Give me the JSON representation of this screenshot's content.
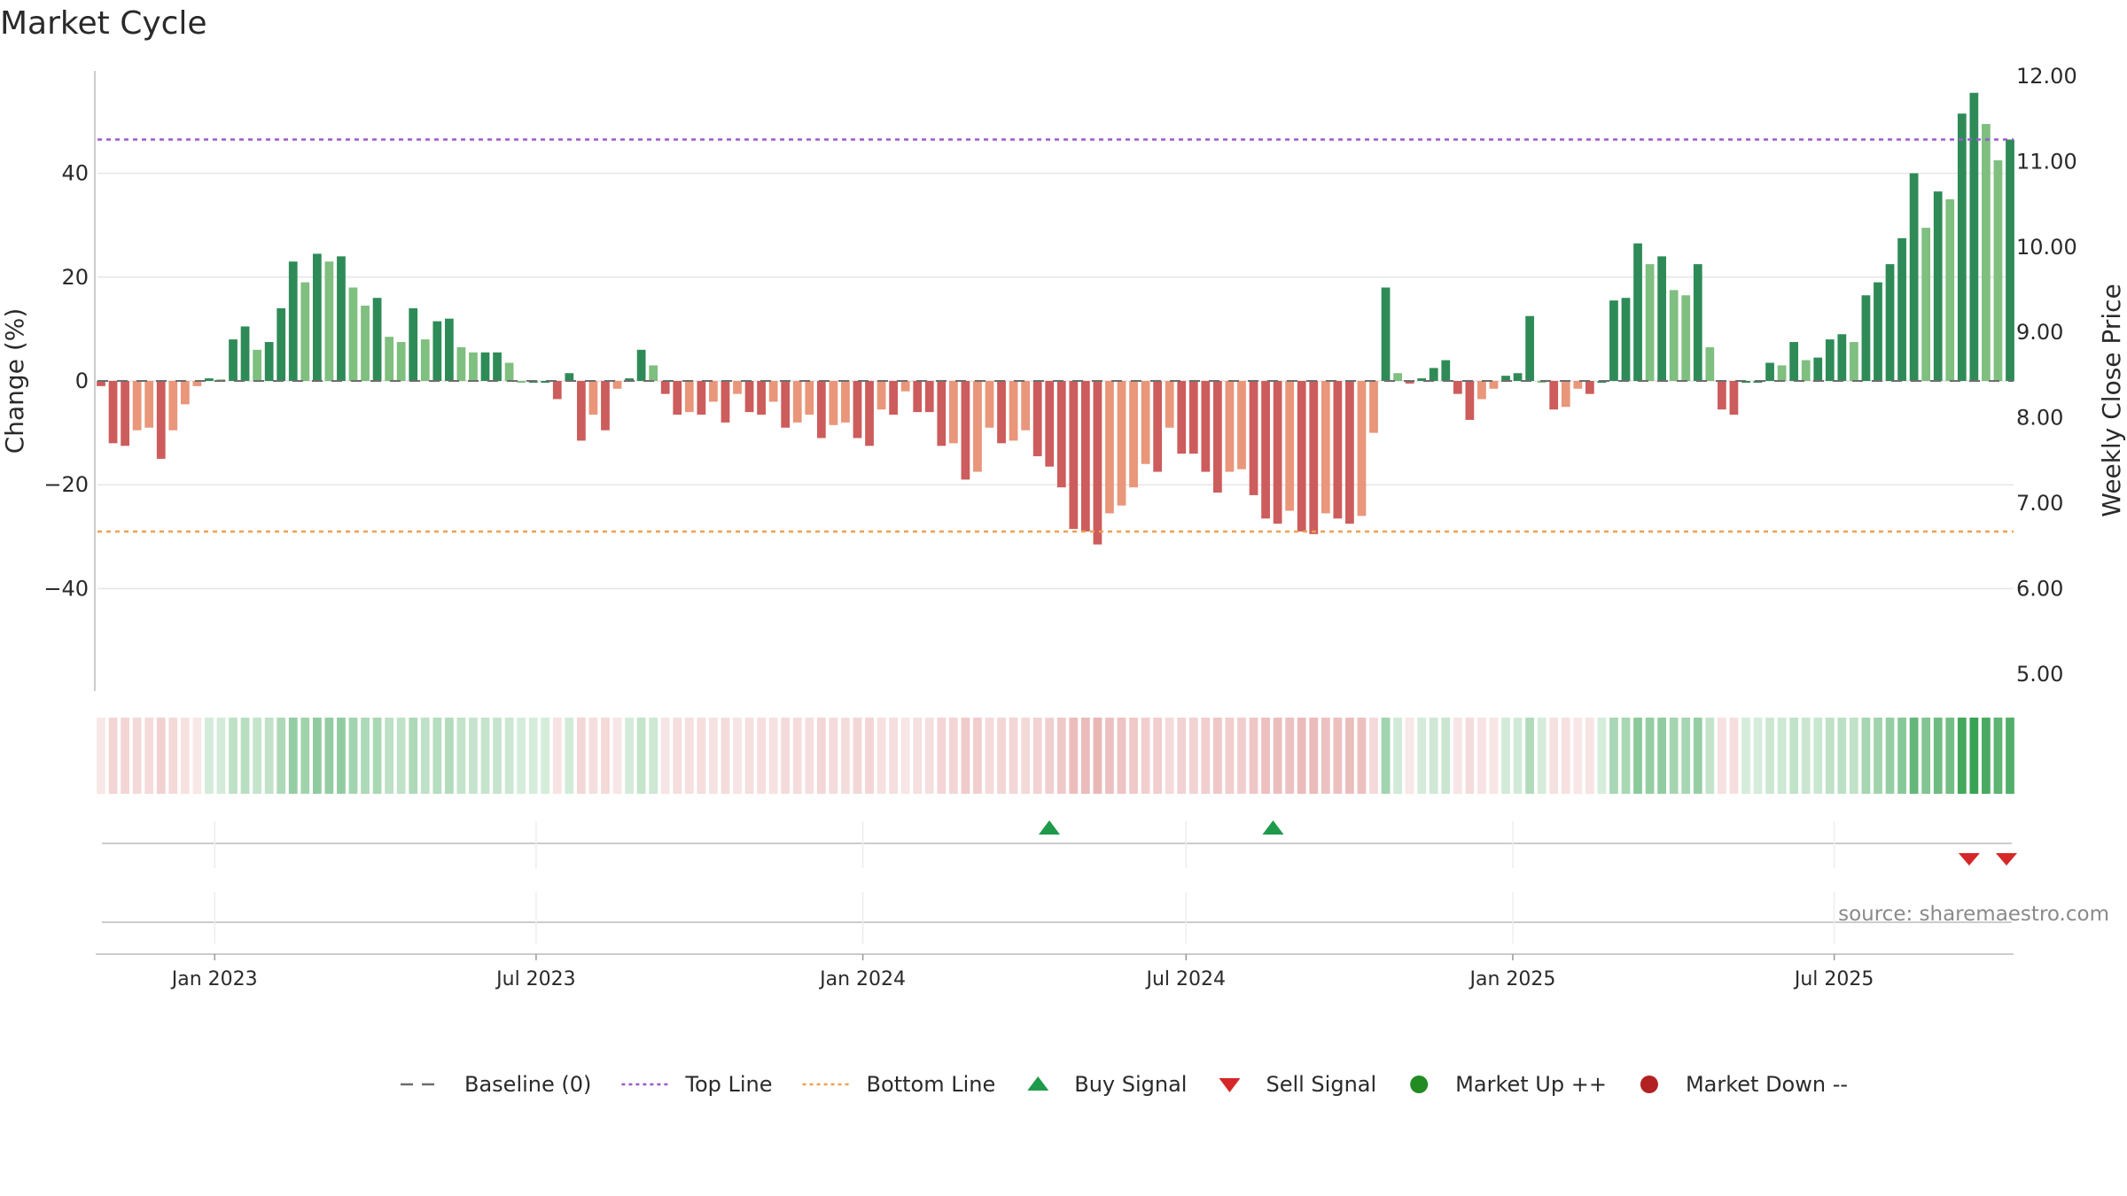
{
  "chart_data": {
    "type": "bar",
    "title": "Market Cycle",
    "ylabel": "Change (%)",
    "y2label": "Weekly Close Price",
    "ylim": [
      -60,
      60
    ],
    "y_ticks": [
      "40",
      "20",
      "0",
      "−20",
      "−40"
    ],
    "y_tick_values": [
      40,
      20,
      0,
      -20,
      -40
    ],
    "y2_ticks": [
      "12.00",
      "11.00",
      "10.00",
      "9.00",
      "8.00",
      "7.00",
      "6.00",
      "5.00"
    ],
    "y2_tick_values": [
      12,
      11,
      10,
      9,
      8,
      7,
      6,
      5
    ],
    "top_line": 46.5,
    "bottom_line": -29,
    "baseline": 0,
    "x_start": "2022-10-31",
    "x_end": "2025-10-06",
    "x_ticks": [
      {
        "label": "Jan 2023",
        "date": "2023-01-01"
      },
      {
        "label": "Jul 2023",
        "date": "2023-07-01"
      },
      {
        "label": "Jan 2024",
        "date": "2024-01-01"
      },
      {
        "label": "Jul 2024",
        "date": "2024-07-01"
      },
      {
        "label": "Jan 2025",
        "date": "2025-01-01"
      },
      {
        "label": "Jul 2025",
        "date": "2025-07-01"
      }
    ],
    "values": [
      -1.0,
      -12,
      -12.5,
      -9.5,
      -9,
      -15,
      -9.5,
      -4.5,
      -1,
      0.5,
      0.3,
      8,
      10.5,
      6,
      7.5,
      14,
      23,
      19,
      24.5,
      23,
      24,
      18,
      14.5,
      16,
      8.5,
      7.5,
      14,
      8,
      11.5,
      12,
      6.5,
      5.5,
      5.5,
      5.5,
      3.5,
      0,
      0,
      0,
      -3.5,
      1.5,
      -11.5,
      -6.5,
      -9.5,
      -1.5,
      0.5,
      6,
      3,
      -2.5,
      -6.5,
      -6,
      -6.5,
      -4,
      -8,
      -2.5,
      -6,
      -6.5,
      -4,
      -9,
      -8,
      -6.5,
      -11,
      -8.5,
      -8,
      -11,
      -12.5,
      -5.5,
      -6.5,
      -2,
      -6,
      -6,
      -12.5,
      -12,
      -19,
      -17.5,
      -9,
      -12,
      -11.5,
      -9.5,
      -14.5,
      -16.5,
      -20.5,
      -28.5,
      -29,
      -31.5,
      -25.5,
      -24,
      -20.5,
      -16,
      -17.5,
      -9,
      -14,
      -14,
      -17.5,
      -21.5,
      -17.5,
      -17,
      -22,
      -26.5,
      -27.5,
      -25,
      -29,
      -29.5,
      -25.5,
      -26.5,
      -27.5,
      -26,
      -10,
      18,
      1.5,
      -0.5,
      0.5,
      2.5,
      4,
      -2.5,
      -7.5,
      -3.5,
      -1.5,
      1,
      1.5,
      12.5,
      0,
      -5.5,
      -5,
      -1.5,
      -2.5,
      0,
      15.5,
      16,
      26.5,
      22.5,
      24,
      17.5,
      16.5,
      22.5,
      6.5,
      -5.5,
      -6.5,
      0,
      0,
      3.5,
      3,
      7.5,
      4,
      4.5,
      8,
      9,
      7.5,
      16.5,
      19,
      22.5,
      27.5,
      40,
      29.5,
      36.5,
      35,
      51.5,
      55.5,
      49.5,
      42.5,
      46.5
    ],
    "buy_signal_dates": [
      "2024-04-15",
      "2024-08-19"
    ],
    "sell_signal_dates": [
      "2025-09-15",
      "2025-10-06"
    ],
    "legend": [
      {
        "label": "Baseline (0)",
        "symbol": "dashed",
        "color": "#6d6d6d"
      },
      {
        "label": "Top Line",
        "symbol": "dotted",
        "color": "#9b59d0"
      },
      {
        "label": "Bottom Line",
        "symbol": "dotted",
        "color": "#f0a050"
      },
      {
        "label": "Buy Signal",
        "symbol": "triangle-up",
        "color": "#1e9a4a"
      },
      {
        "label": "Sell Signal",
        "symbol": "triangle-down",
        "color": "#d62728"
      },
      {
        "label": "Market Up ++",
        "symbol": "circle",
        "color": "#228b22"
      },
      {
        "label": "Market Down --",
        "symbol": "circle",
        "color": "#b22222"
      }
    ],
    "colors": {
      "strong_up": "#2e8b57",
      "weak_up": "#7fbf7f",
      "strong_down": "#cd5c5c",
      "weak_down": "#e9967a",
      "top_line": "#9b59d0",
      "bottom_line": "#f0a050",
      "heat_up": "#2e9e4a",
      "heat_down": "#c84040"
    }
  },
  "source": "source: sharemaestro.com"
}
